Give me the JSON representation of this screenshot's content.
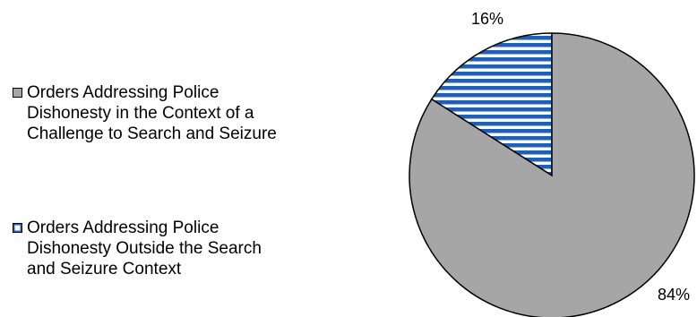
{
  "chart_data": {
    "type": "pie",
    "title": "",
    "slices": [
      {
        "label": "Orders Addressing Police Dishonesty Outside the Search and Seizure Context",
        "value": 16,
        "display": "16%",
        "color": "#1f5fb5",
        "pattern": "horizontal-stripes"
      },
      {
        "label": "Orders Addressing Police Dishonesty in the Context of a Challenge to Search and Seizure",
        "value": 84,
        "display": "84%",
        "color": "#a6a6a6",
        "pattern": "solid"
      }
    ],
    "legend_position": "left",
    "legend": [
      {
        "label": "Orders Addressing Police\nDishonesty in the Context of a\nChallenge to Search and Seizure",
        "swatch": "gray"
      },
      {
        "label": "Orders Addressing Police\nDishonesty Outside the Search\nand Seizure Context",
        "swatch": "stripe"
      }
    ]
  }
}
